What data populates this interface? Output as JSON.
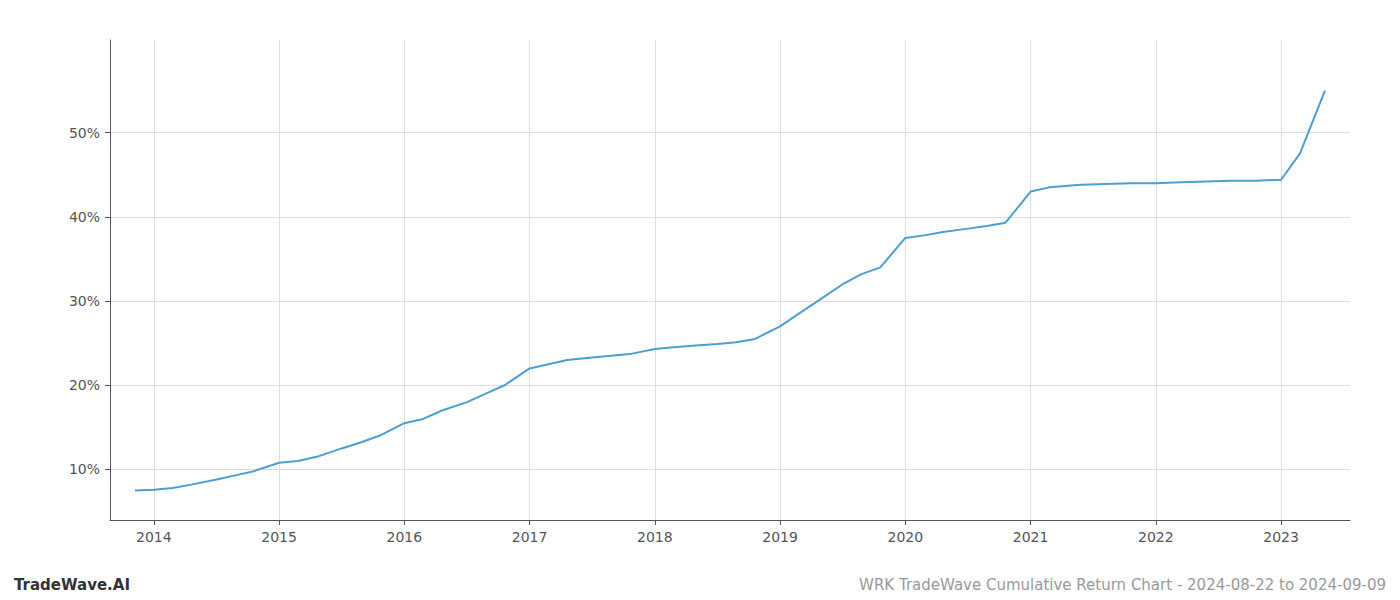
{
  "chart_data": {
    "type": "line",
    "x": [
      2013.85,
      2014.0,
      2014.15,
      2014.3,
      2014.5,
      2014.65,
      2014.8,
      2015.0,
      2015.15,
      2015.3,
      2015.5,
      2015.65,
      2015.8,
      2016.0,
      2016.15,
      2016.3,
      2016.5,
      2016.65,
      2016.8,
      2017.0,
      2017.15,
      2017.3,
      2017.5,
      2017.65,
      2017.8,
      2018.0,
      2018.15,
      2018.3,
      2018.5,
      2018.65,
      2018.8,
      2019.0,
      2019.15,
      2019.3,
      2019.5,
      2019.65,
      2019.8,
      2020.0,
      2020.15,
      2020.3,
      2020.5,
      2020.65,
      2020.8,
      2021.0,
      2021.15,
      2021.3,
      2021.4,
      2021.6,
      2021.8,
      2022.0,
      2022.2,
      2022.4,
      2022.6,
      2022.8,
      2023.0,
      2023.15,
      2023.35
    ],
    "values": [
      7.5,
      7.6,
      7.8,
      8.2,
      8.8,
      9.3,
      9.8,
      10.8,
      11.0,
      11.5,
      12.5,
      13.2,
      14.0,
      15.5,
      16.0,
      17.0,
      18.0,
      19.0,
      20.0,
      22.0,
      22.5,
      23.0,
      23.3,
      23.5,
      23.7,
      24.3,
      24.5,
      24.7,
      24.9,
      25.1,
      25.5,
      27.0,
      28.5,
      30.0,
      32.0,
      33.2,
      34.0,
      37.5,
      37.8,
      38.2,
      38.6,
      38.9,
      39.3,
      43.0,
      43.5,
      43.7,
      43.8,
      43.9,
      44.0,
      44.0,
      44.1,
      44.2,
      44.3,
      44.3,
      44.4,
      47.5,
      55.0
    ],
    "color": "#4a9fd4",
    "xlim": [
      2013.65,
      2023.55
    ],
    "ylim": [
      4,
      61
    ],
    "xticks": [
      2014,
      2015,
      2016,
      2017,
      2018,
      2019,
      2020,
      2021,
      2022,
      2023
    ],
    "yticks": [
      {
        "value": 10,
        "label": "10%"
      },
      {
        "value": 20,
        "label": "20%"
      },
      {
        "value": 30,
        "label": "30%"
      },
      {
        "value": 40,
        "label": "40%"
      },
      {
        "value": 50,
        "label": "50%"
      }
    ],
    "grid": true,
    "annotations": [
      "TradeWave.AI",
      "WRK TradeWave Cumulative Return Chart - 2024-08-22 to 2024-09-09"
    ]
  }
}
